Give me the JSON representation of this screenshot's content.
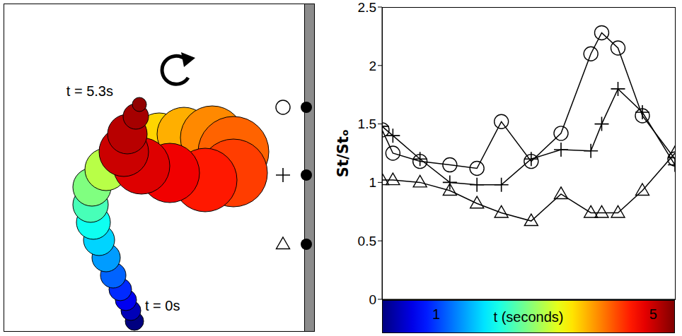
{
  "chart_data": [
    {
      "type": "bubble",
      "x": [
        185,
        180,
        173,
        165,
        155,
        145,
        135,
        127,
        123,
        125,
        145,
        180,
        220,
        255,
        295,
        325,
        325,
        285,
        235,
        195,
        170,
        175,
        187,
        192
      ],
      "y": [
        15,
        30,
        45,
        60,
        80,
        105,
        130,
        155,
        180,
        205,
        230,
        255,
        275,
        280,
        275,
        255,
        225,
        215,
        225,
        235,
        255,
        280,
        305,
        322
      ],
      "t": [
        0,
        0.3,
        0.6,
        0.9,
        1.2,
        1.5,
        1.8,
        2.1,
        2.4,
        2.7,
        3.0,
        3.3,
        3.6,
        3.8,
        4.0,
        4.2,
        4.4,
        4.6,
        4.8,
        4.9,
        5.0,
        5.1,
        5.2,
        5.3
      ],
      "size": [
        13,
        14,
        15,
        16,
        18,
        20,
        22,
        24,
        25,
        27,
        30,
        32,
        35,
        38,
        45,
        50,
        48,
        45,
        42,
        40,
        35,
        28,
        18,
        10
      ],
      "xlim": [
        0,
        440
      ],
      "ylim": [
        0,
        465
      ],
      "tick_labels": false,
      "annotations": [
        "t = 5.3s",
        "t = 0s"
      ],
      "probes": {
        "x": 428,
        "y": [
          318,
          222,
          124
        ],
        "marker": [
          "circle",
          "plus",
          "triangle"
        ]
      }
    },
    {
      "type": "line",
      "x": [
        0,
        0.2,
        0.7,
        1.25,
        1.75,
        2.2,
        2.75,
        3.3,
        3.85,
        4.05,
        4.35,
        4.8,
        5.4
      ],
      "series": [
        {
          "color": "#000000",
          "marker": "circle",
          "values": [
            1.45,
            1.25,
            1.18,
            1.15,
            1.12,
            1.52,
            1.18,
            1.42,
            2.1,
            2.28,
            2.15,
            1.57,
            1.2
          ]
        },
        {
          "color": "#000000",
          "marker": "plus",
          "values": [
            1.48,
            1.4,
            1.2,
            1.0,
            0.98,
            0.98,
            1.2,
            1.28,
            1.27,
            1.5,
            1.8,
            1.6,
            1.15
          ]
        },
        {
          "color": "#000000",
          "marker": "triangle",
          "values": [
            1.02,
            1.02,
            1.0,
            0.93,
            0.82,
            0.74,
            0.67,
            0.9,
            0.74,
            0.74,
            0.74,
            0.93,
            1.25
          ]
        }
      ],
      "xlim": [
        0,
        5.4
      ],
      "ylim": [
        0,
        2.5
      ],
      "xticks": [
        1,
        5
      ],
      "yticks": [
        0,
        0.5,
        1,
        1.5,
        2,
        2.5
      ],
      "xlabel": "t (seconds)",
      "ylabel": "St/Stₒ"
    }
  ]
}
